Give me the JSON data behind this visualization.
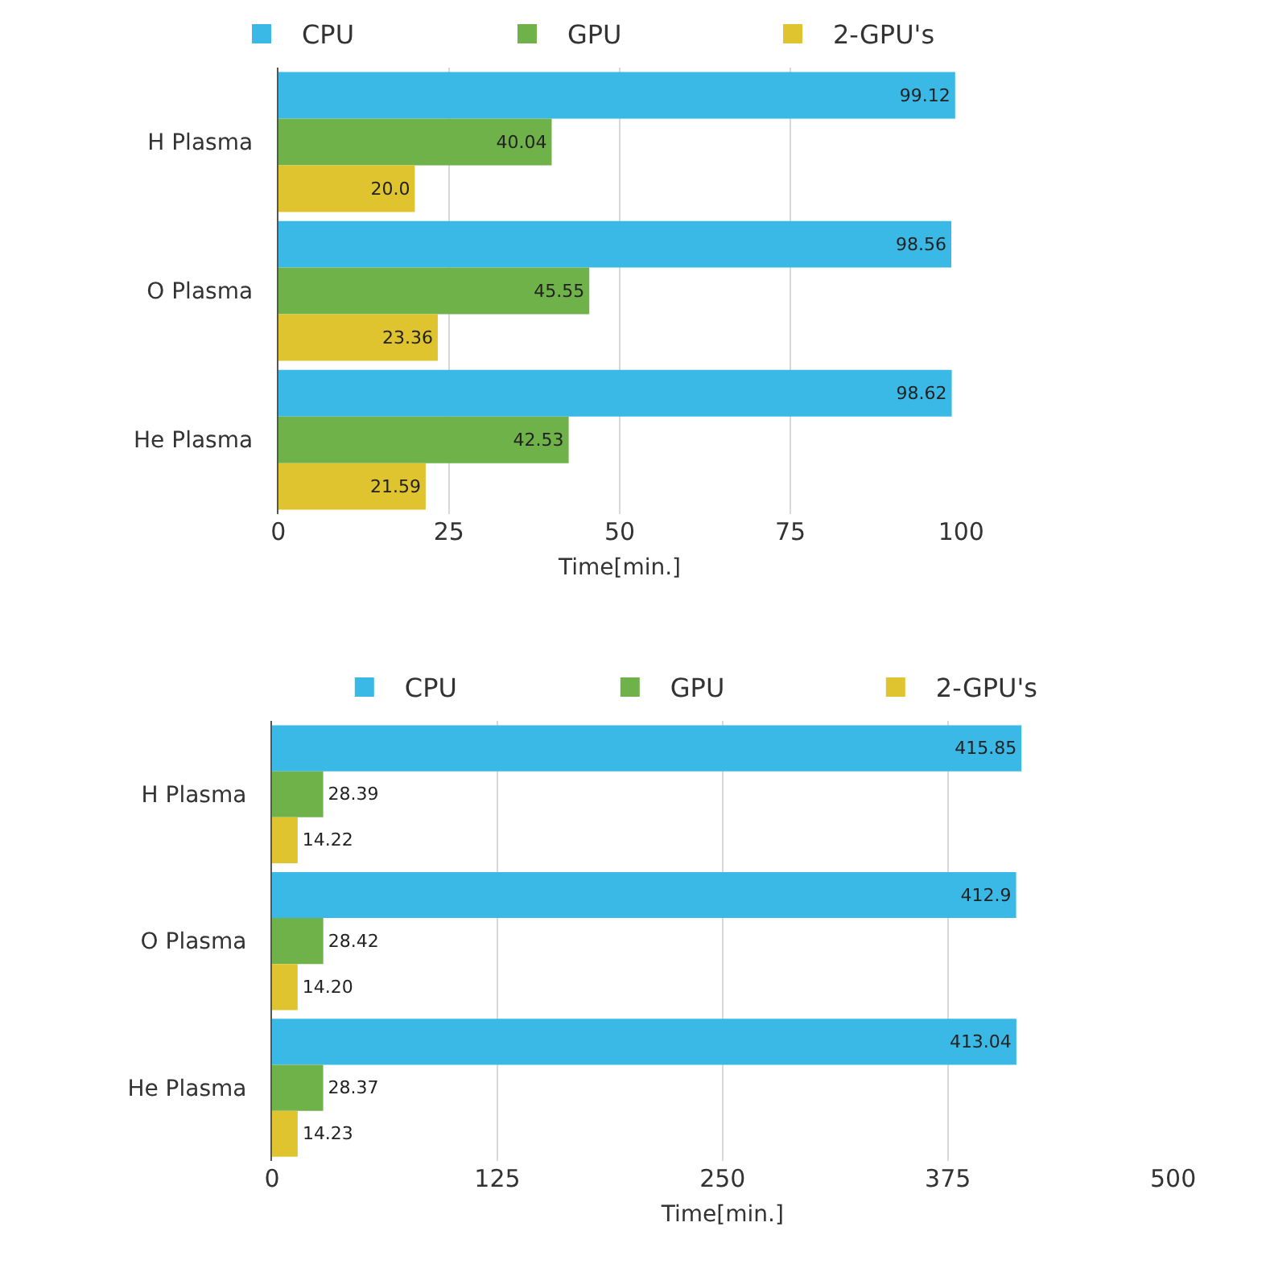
{
  "chart_data": [
    {
      "type": "bar",
      "orientation": "horizontal",
      "categories": [
        "H Plasma",
        "O Plasma",
        "He Plasma"
      ],
      "xlabel": "Time[min.]",
      "xlim": [
        0,
        100
      ],
      "xticks": [
        0,
        25,
        50,
        75,
        100
      ],
      "grid": "x",
      "legend": "top",
      "data_labels": true,
      "series": [
        {
          "name": "CPU",
          "color": "#3bb9e6",
          "values": [
            99.12,
            98.56,
            98.62
          ],
          "value_labels": [
            "99.12",
            "98.56",
            "98.62"
          ]
        },
        {
          "name": "GPU",
          "color": "#6fb24a",
          "values": [
            40.04,
            45.55,
            42.53
          ],
          "value_labels": [
            "40.04",
            "45.55",
            "42.53"
          ]
        },
        {
          "name": "2-GPU's",
          "color": "#e0c42f",
          "values": [
            20.0,
            23.36,
            21.59
          ],
          "value_labels": [
            "20.0",
            "23.36",
            "21.59"
          ]
        }
      ]
    },
    {
      "type": "bar",
      "orientation": "horizontal",
      "categories": [
        "H Plasma",
        "O Plasma",
        "He Plasma"
      ],
      "xlabel": "Time[min.]",
      "xlim": [
        0,
        500
      ],
      "xticks": [
        0,
        125,
        250,
        375,
        500
      ],
      "grid": "x",
      "legend": "top",
      "data_labels": true,
      "series": [
        {
          "name": "CPU",
          "color": "#3bb9e6",
          "values": [
            415.85,
            412.9,
            413.04
          ],
          "value_labels": [
            "415.85",
            "412.9",
            "413.04"
          ]
        },
        {
          "name": "GPU",
          "color": "#6fb24a",
          "values": [
            28.39,
            28.42,
            28.37
          ],
          "value_labels": [
            "28.39",
            "28.42",
            "28.37"
          ]
        },
        {
          "name": "2-GPU's",
          "color": "#e0c42f",
          "values": [
            14.22,
            14.2,
            14.23
          ],
          "value_labels": [
            "14.22",
            "14.20",
            "14.23"
          ]
        }
      ]
    }
  ]
}
